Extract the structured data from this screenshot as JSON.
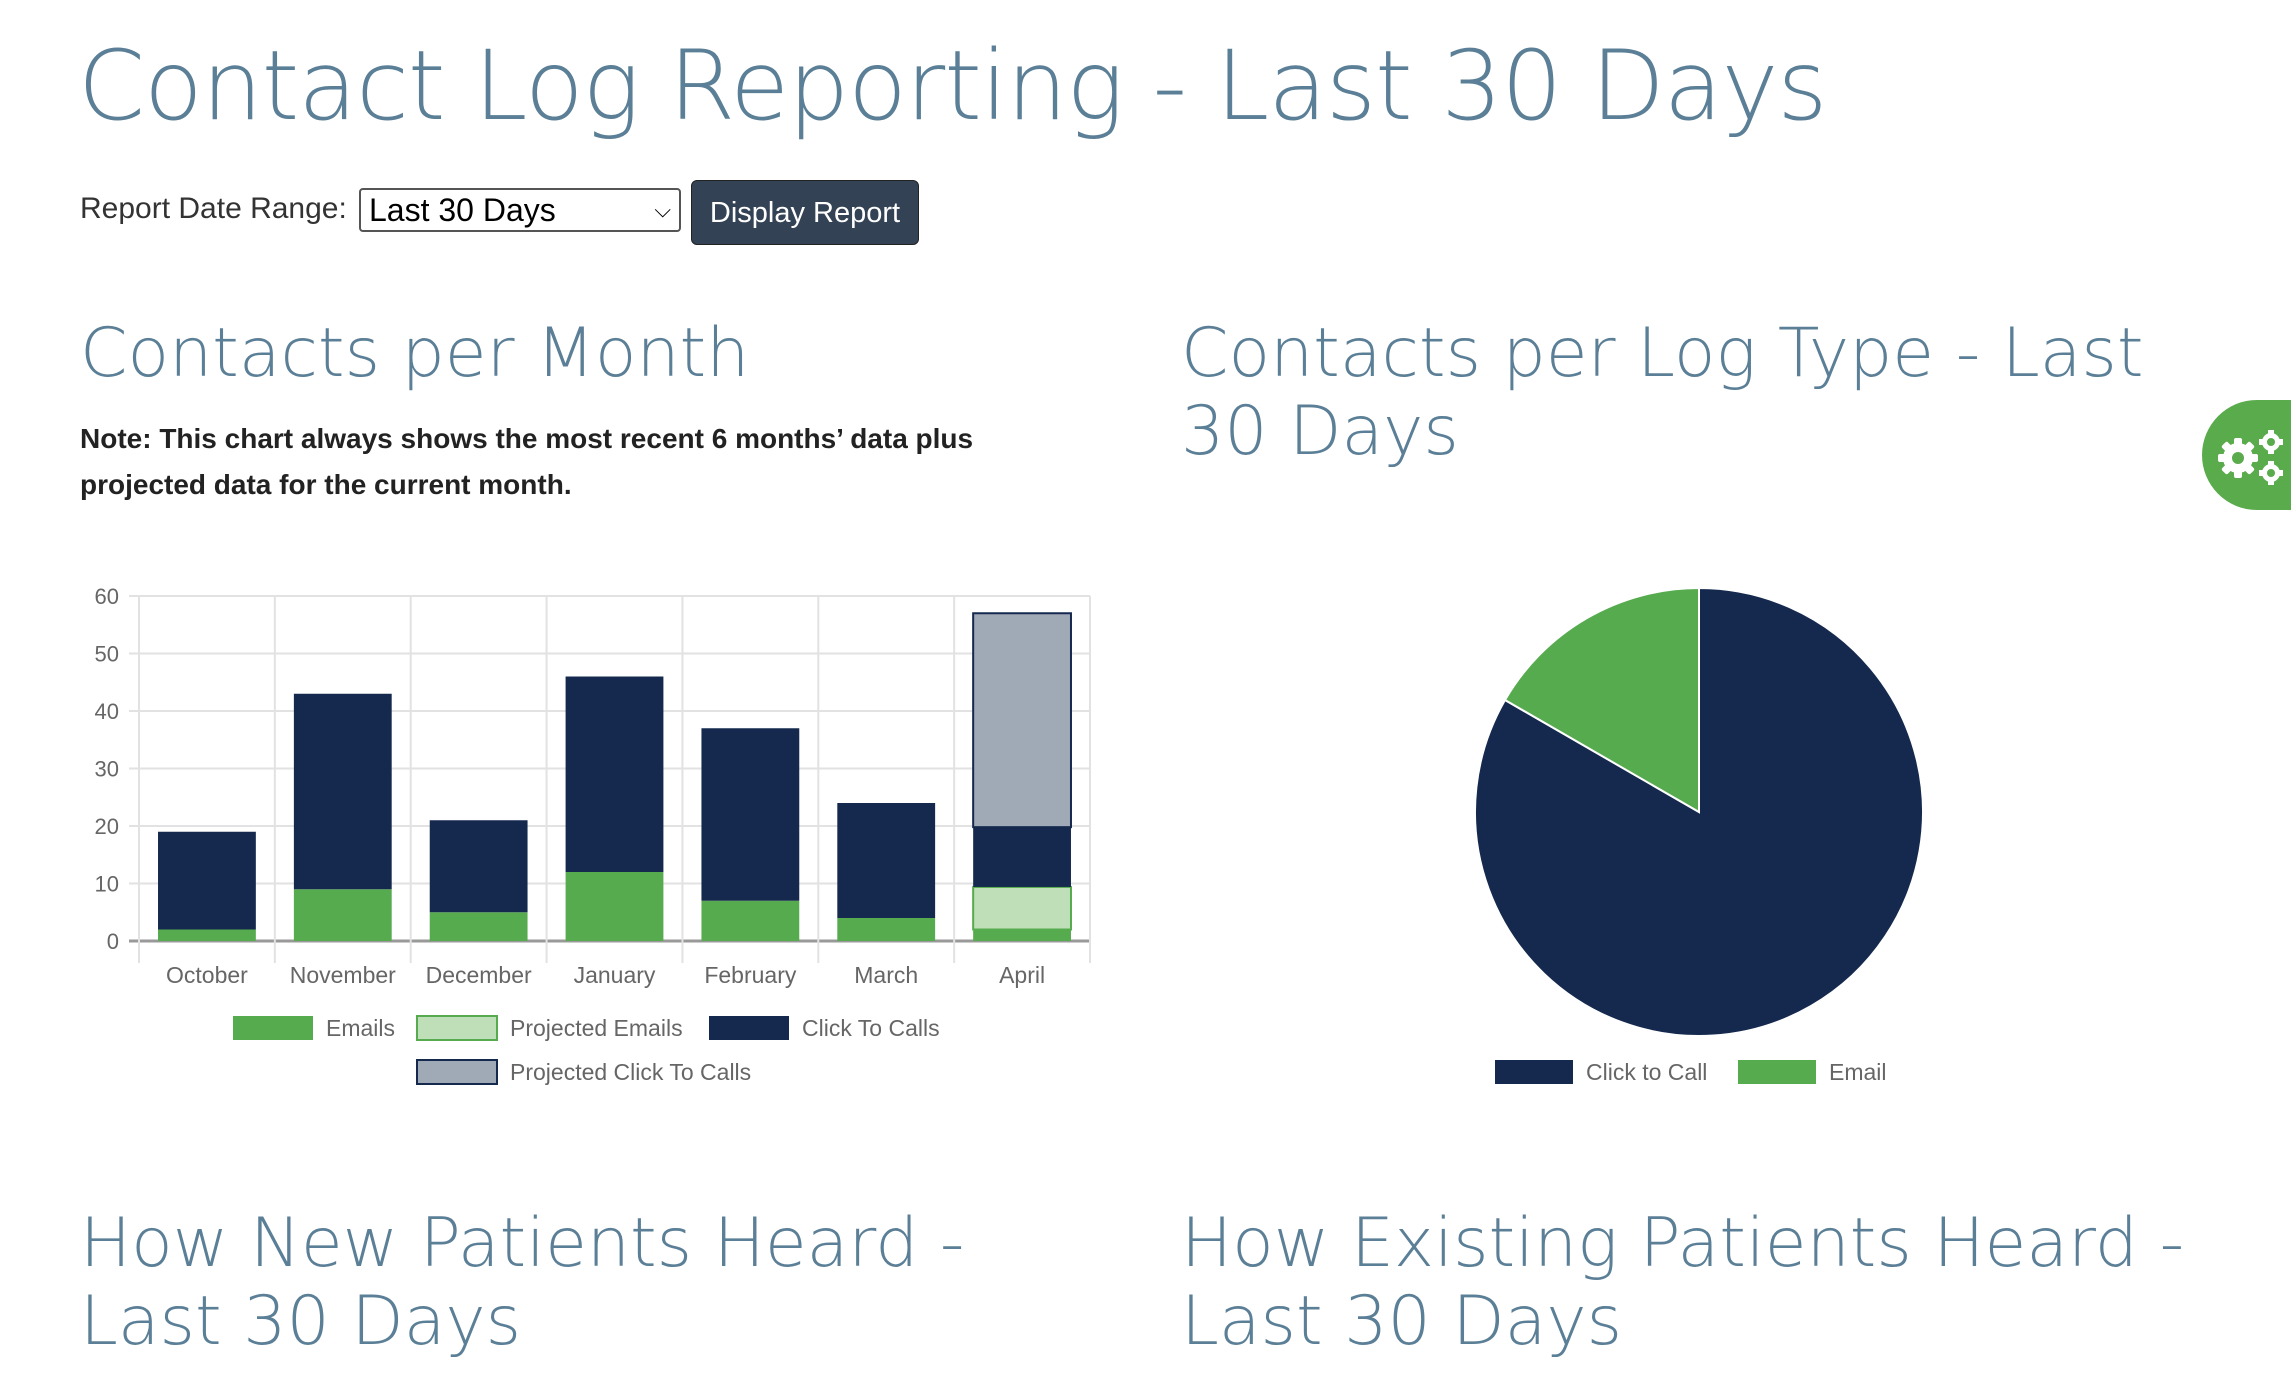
{
  "page_title": "Contact Log Reporting - Last 30 Days",
  "controls": {
    "label": "Report Date Range:",
    "select_value": "Last 30 Days",
    "button": "Display Report"
  },
  "sections": {
    "month_title": "Contacts per Month",
    "month_note": "Note: This chart always shows the most recent 6 months’ data plus projected data for the current month.",
    "logtype_title": "Contacts per Log Type - Last 30 Days",
    "new_patients_title": "How New Patients Heard - Last 30 Days",
    "existing_patients_title": "How Existing Patients Heard - Last 30 Days"
  },
  "settings_icon": "gears-icon",
  "colors": {
    "emails": "#57ab4f",
    "projected_emails": "#bfdfb9",
    "click_to_calls": "#15294e",
    "projected_click_to_calls": "#a0a9b6",
    "title": "#5b7f96",
    "button": "#344256"
  },
  "chart_data": [
    {
      "type": "bar",
      "stacked": true,
      "categories": [
        "October",
        "November",
        "December",
        "January",
        "February",
        "March",
        "April"
      ],
      "series": [
        {
          "name": "Emails",
          "values": [
            2,
            9,
            5,
            12,
            7,
            4,
            2
          ]
        },
        {
          "name": "Projected Emails",
          "values": [
            0,
            0,
            0,
            0,
            0,
            0,
            7.4
          ]
        },
        {
          "name": "Click To Calls",
          "values": [
            17,
            34,
            16,
            34,
            30,
            20,
            10.4
          ]
        },
        {
          "name": "Projected Click To Calls",
          "values": [
            0,
            0,
            0,
            0,
            0,
            0,
            37.2
          ]
        }
      ],
      "yticks": [
        0,
        10,
        20,
        30,
        40,
        50,
        60
      ],
      "ylim": [
        0,
        60
      ],
      "grid": true,
      "legend": "bottom"
    },
    {
      "type": "pie",
      "labels": [
        "Click to Call",
        "Email"
      ],
      "values": [
        10,
        2
      ],
      "legend": "bottom"
    }
  ]
}
